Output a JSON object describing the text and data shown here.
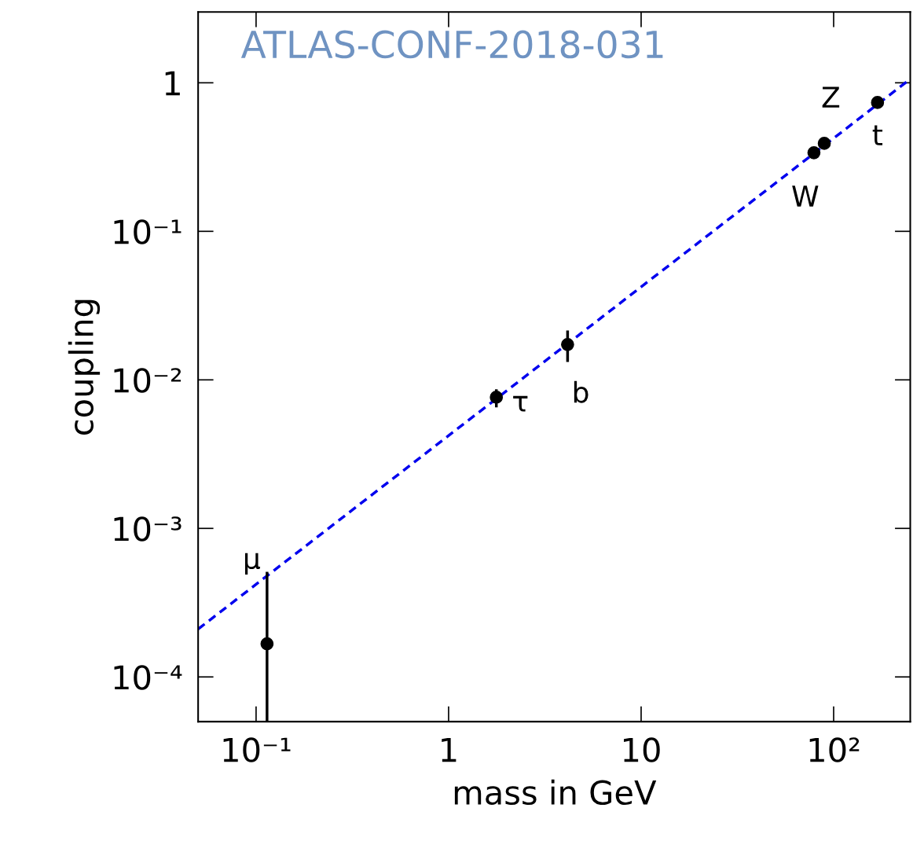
{
  "chart_data": {
    "type": "scatter",
    "xlabel": "mass in GeV",
    "ylabel": "coupling",
    "log": "xy",
    "grid": false,
    "legend": false,
    "xlim": [
      0.05,
      250
    ],
    "ylim": [
      5e-05,
      3
    ],
    "xticks": [
      {
        "value": 0.1,
        "label": "10⁻¹"
      },
      1,
      10,
      {
        "value": 100,
        "label": "10²"
      }
    ],
    "yticks": [
      {
        "value": 0.0001,
        "label": "10⁻⁴"
      },
      {
        "value": 0.001,
        "label": "10⁻³"
      },
      {
        "value": 0.01,
        "label": "10⁻²"
      },
      {
        "value": 0.1,
        "label": "10⁻¹"
      },
      1
    ],
    "series": [
      {
        "color": "#000000",
        "marker": "circle",
        "x": [
          0.114,
          1.77,
          4.15,
          79,
          89.4,
          169
        ],
        "values": [
          0.000167,
          0.00765,
          0.0173,
          0.338,
          0.391,
          0.737
        ],
        "errors": [
          [
            5e-05,
            0.00051
          ],
          [
            0.00653,
            0.00864
          ],
          [
            0.0132,
            0.0215
          ],
          null,
          null,
          null
        ]
      },
      {
        "type": "line",
        "color": "#0000ee",
        "line_style": "dashed",
        "x": [
          0.05,
          250
        ],
        "values": [
          0.00021,
          1.06
        ]
      }
    ],
    "annotations": [
      "ATLAS-CONF-2018-031",
      "μ",
      "τ",
      "b",
      "W",
      "Z",
      "t"
    ]
  }
}
